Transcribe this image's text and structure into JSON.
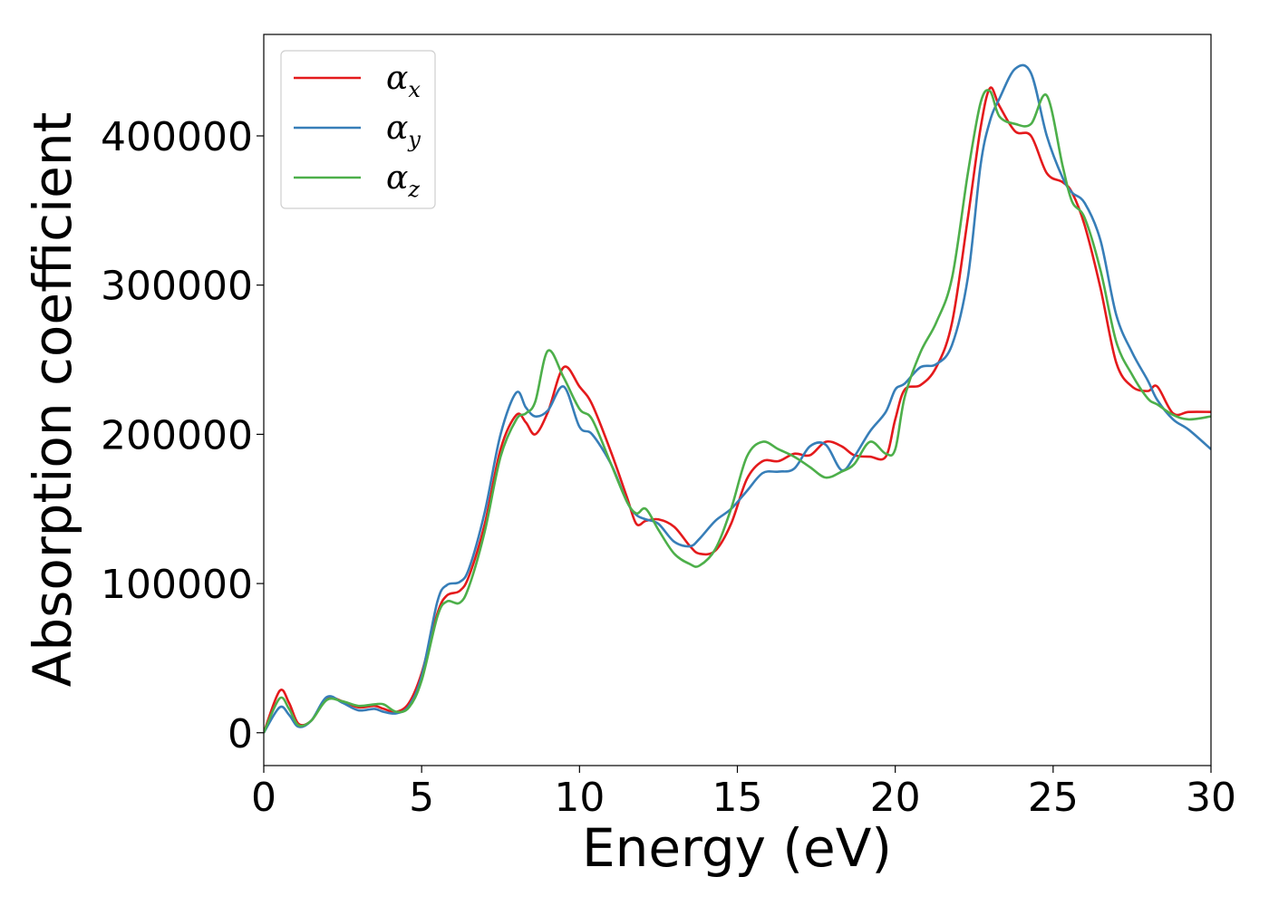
{
  "chart_data": {
    "type": "line",
    "title": "",
    "xlabel": "Energy (eV)",
    "ylabel": "Absorption coefficient",
    "xlim": [
      0,
      30
    ],
    "ylim": [
      -22000,
      468000
    ],
    "xticks": [
      0,
      5,
      10,
      15,
      20,
      25,
      30
    ],
    "xtick_labels": [
      "0",
      "5",
      "10",
      "15",
      "20",
      "25",
      "30"
    ],
    "yticks": [
      0,
      100000,
      200000,
      300000,
      400000
    ],
    "ytick_labels": [
      "0",
      "100000",
      "200000",
      "300000",
      "400000"
    ],
    "grid": false,
    "legend_position": "top-left",
    "series": [
      {
        "name": "α",
        "subscript": "x",
        "color": "#e41a1c",
        "points": [
          [
            0,
            0
          ],
          [
            0.5,
            28000
          ],
          [
            0.8,
            20000
          ],
          [
            1.1,
            6000
          ],
          [
            1.5,
            8000
          ],
          [
            2.0,
            23000
          ],
          [
            2.5,
            21000
          ],
          [
            3.0,
            17000
          ],
          [
            3.5,
            18000
          ],
          [
            3.8,
            16000
          ],
          [
            4.2,
            14000
          ],
          [
            4.6,
            20000
          ],
          [
            5.0,
            40000
          ],
          [
            5.5,
            80000
          ],
          [
            5.8,
            92000
          ],
          [
            6.2,
            95000
          ],
          [
            6.5,
            105000
          ],
          [
            7.0,
            140000
          ],
          [
            7.5,
            190000
          ],
          [
            8.0,
            213000
          ],
          [
            8.3,
            208000
          ],
          [
            8.6,
            200000
          ],
          [
            9.0,
            215000
          ],
          [
            9.5,
            245000
          ],
          [
            10.0,
            232000
          ],
          [
            10.4,
            220000
          ],
          [
            11.0,
            188000
          ],
          [
            11.5,
            158000
          ],
          [
            11.8,
            140000
          ],
          [
            12.1,
            142000
          ],
          [
            12.5,
            143000
          ],
          [
            13.0,
            138000
          ],
          [
            13.5,
            125000
          ],
          [
            13.8,
            120000
          ],
          [
            14.3,
            122000
          ],
          [
            14.8,
            140000
          ],
          [
            15.3,
            170000
          ],
          [
            15.8,
            182000
          ],
          [
            16.3,
            182000
          ],
          [
            16.8,
            187000
          ],
          [
            17.3,
            186000
          ],
          [
            17.8,
            195000
          ],
          [
            18.3,
            192000
          ],
          [
            18.7,
            186000
          ],
          [
            19.2,
            185000
          ],
          [
            19.7,
            185000
          ],
          [
            20.0,
            210000
          ],
          [
            20.3,
            230000
          ],
          [
            20.8,
            233000
          ],
          [
            21.3,
            245000
          ],
          [
            21.8,
            275000
          ],
          [
            22.3,
            345000
          ],
          [
            22.7,
            405000
          ],
          [
            23.0,
            432000
          ],
          [
            23.3,
            420000
          ],
          [
            23.8,
            403000
          ],
          [
            24.3,
            400000
          ],
          [
            24.8,
            375000
          ],
          [
            25.3,
            369000
          ],
          [
            25.6,
            362000
          ],
          [
            26.0,
            340000
          ],
          [
            26.5,
            298000
          ],
          [
            27.0,
            248000
          ],
          [
            27.5,
            232000
          ],
          [
            28.0,
            229000
          ],
          [
            28.3,
            232000
          ],
          [
            28.8,
            214000
          ],
          [
            29.3,
            215000
          ],
          [
            30.0,
            215000
          ]
        ]
      },
      {
        "name": "α",
        "subscript": "y",
        "color": "#377eb8",
        "points": [
          [
            0,
            0
          ],
          [
            0.5,
            17000
          ],
          [
            0.8,
            12000
          ],
          [
            1.1,
            4000
          ],
          [
            1.5,
            8000
          ],
          [
            2.0,
            24000
          ],
          [
            2.5,
            20000
          ],
          [
            3.0,
            15000
          ],
          [
            3.5,
            16000
          ],
          [
            3.8,
            14000
          ],
          [
            4.2,
            13000
          ],
          [
            4.6,
            18000
          ],
          [
            5.0,
            38000
          ],
          [
            5.5,
            88000
          ],
          [
            5.8,
            99000
          ],
          [
            6.2,
            101000
          ],
          [
            6.5,
            110000
          ],
          [
            7.0,
            148000
          ],
          [
            7.5,
            200000
          ],
          [
            8.0,
            228000
          ],
          [
            8.3,
            218000
          ],
          [
            8.6,
            212000
          ],
          [
            9.0,
            216000
          ],
          [
            9.5,
            232000
          ],
          [
            10.0,
            205000
          ],
          [
            10.4,
            200000
          ],
          [
            11.0,
            180000
          ],
          [
            11.5,
            155000
          ],
          [
            11.8,
            146000
          ],
          [
            12.1,
            143000
          ],
          [
            12.5,
            140000
          ],
          [
            13.0,
            128000
          ],
          [
            13.5,
            125000
          ],
          [
            13.8,
            130000
          ],
          [
            14.3,
            142000
          ],
          [
            14.8,
            150000
          ],
          [
            15.3,
            162000
          ],
          [
            15.8,
            174000
          ],
          [
            16.3,
            175000
          ],
          [
            16.8,
            177000
          ],
          [
            17.3,
            192000
          ],
          [
            17.8,
            193000
          ],
          [
            18.3,
            176000
          ],
          [
            18.7,
            185000
          ],
          [
            19.2,
            202000
          ],
          [
            19.7,
            215000
          ],
          [
            20.0,
            230000
          ],
          [
            20.3,
            234000
          ],
          [
            20.8,
            245000
          ],
          [
            21.3,
            247000
          ],
          [
            21.8,
            260000
          ],
          [
            22.3,
            305000
          ],
          [
            22.7,
            380000
          ],
          [
            23.0,
            410000
          ],
          [
            23.3,
            425000
          ],
          [
            23.8,
            445000
          ],
          [
            24.3,
            442000
          ],
          [
            24.8,
            400000
          ],
          [
            25.3,
            372000
          ],
          [
            25.6,
            362000
          ],
          [
            26.0,
            355000
          ],
          [
            26.5,
            330000
          ],
          [
            27.0,
            280000
          ],
          [
            27.5,
            255000
          ],
          [
            28.0,
            236000
          ],
          [
            28.3,
            223000
          ],
          [
            28.8,
            210000
          ],
          [
            29.3,
            203000
          ],
          [
            30.0,
            190000
          ]
        ]
      },
      {
        "name": "α",
        "subscript": "z",
        "color": "#4daf4a",
        "points": [
          [
            0,
            0
          ],
          [
            0.5,
            23000
          ],
          [
            0.8,
            16000
          ],
          [
            1.1,
            5000
          ],
          [
            1.5,
            8000
          ],
          [
            2.0,
            22000
          ],
          [
            2.5,
            21000
          ],
          [
            3.0,
            18000
          ],
          [
            3.5,
            19000
          ],
          [
            3.8,
            19000
          ],
          [
            4.2,
            14000
          ],
          [
            4.6,
            17000
          ],
          [
            5.0,
            35000
          ],
          [
            5.5,
            78000
          ],
          [
            5.8,
            88000
          ],
          [
            6.2,
            87000
          ],
          [
            6.5,
            98000
          ],
          [
            7.0,
            135000
          ],
          [
            7.5,
            185000
          ],
          [
            8.0,
            210000
          ],
          [
            8.3,
            214000
          ],
          [
            8.6,
            222000
          ],
          [
            9.0,
            256000
          ],
          [
            9.5,
            238000
          ],
          [
            10.0,
            217000
          ],
          [
            10.4,
            210000
          ],
          [
            11.0,
            180000
          ],
          [
            11.5,
            155000
          ],
          [
            11.8,
            147000
          ],
          [
            12.1,
            150000
          ],
          [
            12.5,
            136000
          ],
          [
            13.0,
            120000
          ],
          [
            13.5,
            113000
          ],
          [
            13.8,
            112000
          ],
          [
            14.3,
            123000
          ],
          [
            14.8,
            150000
          ],
          [
            15.3,
            185000
          ],
          [
            15.8,
            195000
          ],
          [
            16.3,
            190000
          ],
          [
            16.8,
            185000
          ],
          [
            17.3,
            178000
          ],
          [
            17.8,
            171000
          ],
          [
            18.3,
            175000
          ],
          [
            18.7,
            180000
          ],
          [
            19.2,
            195000
          ],
          [
            19.7,
            187000
          ],
          [
            20.0,
            190000
          ],
          [
            20.3,
            225000
          ],
          [
            20.8,
            255000
          ],
          [
            21.3,
            275000
          ],
          [
            21.8,
            305000
          ],
          [
            22.3,
            375000
          ],
          [
            22.7,
            422000
          ],
          [
            23.0,
            430000
          ],
          [
            23.3,
            413000
          ],
          [
            23.8,
            408000
          ],
          [
            24.3,
            408000
          ],
          [
            24.8,
            427000
          ],
          [
            25.3,
            380000
          ],
          [
            25.6,
            356000
          ],
          [
            26.0,
            345000
          ],
          [
            26.5,
            310000
          ],
          [
            27.0,
            262000
          ],
          [
            27.5,
            240000
          ],
          [
            28.0,
            224000
          ],
          [
            28.3,
            220000
          ],
          [
            28.8,
            213000
          ],
          [
            29.3,
            210000
          ],
          [
            30.0,
            212000
          ]
        ]
      }
    ]
  }
}
